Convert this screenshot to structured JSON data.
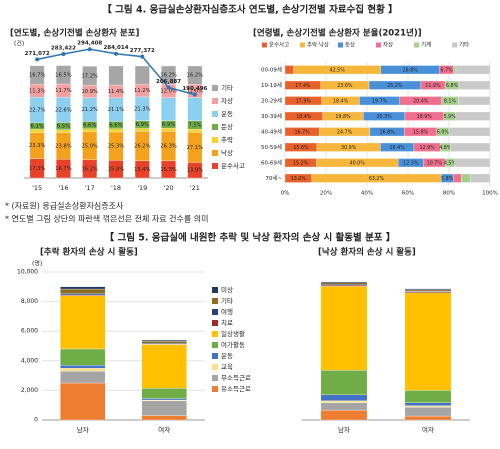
{
  "figure4": {
    "title": "【 그림 4. 응급실손상환자심층조사 연도별, 손상기전별 자료수집 현황 】",
    "notes": [
      "* (자료원) 응급실손상환자심층조사",
      "* 연도별 그림 상단의 파란색 꺾은선은 전체 자료 건수를 의미"
    ]
  },
  "figure5": {
    "title": "【 그림 5. 응급실에 내원한 추락 및 낙상 환자의 손상 시 활동별 분포 】"
  },
  "chart_data": [
    {
      "type": "bar",
      "orientation": "vertical",
      "stacked": true,
      "title": "[연도별, 손상기전별 손상환자 분포]",
      "y_label": "(건)",
      "categories": [
        "'15",
        "'16",
        "'17",
        "'18",
        "'19",
        "'20",
        "'21"
      ],
      "ylim": [
        0,
        100
      ],
      "y2lim": [
        0,
        320000
      ],
      "legend": "right",
      "series": [
        {
          "name": "운수사고",
          "color": "#e8432a",
          "values": [
            17.3,
            16.7,
            16.2,
            15.8,
            15.4,
            15.3,
            13.9
          ],
          "value_labels": [
            "17.3%",
            "16.7%",
            "16.2%",
            "15.8%",
            "15.4%",
            "15.3%",
            "13.9%"
          ]
        },
        {
          "name": "낙상",
          "color": "#f4a21e",
          "values": [
            23.3,
            23.8,
            25.0,
            25.3,
            26.2,
            26.3,
            27.1
          ],
          "value_labels": [
            "23.3%",
            "23.8%",
            "25.0%",
            "25.3%",
            "26.2%",
            "26.3%",
            "27.1%"
          ]
        },
        {
          "name": "추락",
          "color": "#f5d22c",
          "values": [
            2.8,
            2.6,
            2.7,
            2.8,
            2.6,
            2.8,
            2.6
          ]
        },
        {
          "name": "둔상",
          "color": "#70ad47",
          "values": [
            6.1,
            6.5,
            6.6,
            6.6,
            6.9,
            6.9,
            7.5
          ],
          "value_labels": [
            "6.1%",
            "6.5%",
            "6.6%",
            "6.6%",
            "6.9%",
            "6.9%",
            "7.5%"
          ]
        },
        {
          "name": "운동",
          "color": "#8ccfee",
          "values": [
            22.7,
            22.6,
            21.2,
            21.1,
            21.3,
            20.5,
            20.7
          ],
          "value_labels": [
            "22.7%",
            "22.6%",
            "21.2%",
            "21.1%",
            "21.3%",
            null,
            null
          ]
        },
        {
          "name": "자상",
          "color": "#f2a0a0",
          "values": [
            11.3,
            11.7,
            10.9,
            11.4,
            11.2,
            12.0,
            12.0
          ],
          "value_labels": [
            "11.3%",
            "11.7%",
            "10.9%",
            "11.4%",
            "11.2%",
            "12.0%",
            "12.0%"
          ]
        },
        {
          "name": "기타",
          "color": "#a6a6a6",
          "values": [
            16.7,
            16.5,
            17.2,
            17.0,
            16.4,
            16.2,
            16.2
          ],
          "value_labels": [
            "16.7%",
            "16.5%",
            "17.2%",
            null,
            null,
            "16.2%",
            "16.2%"
          ]
        },
        {
          "type": "line",
          "axis": "y2",
          "color": "#2e75b6",
          "values": [
            271072,
            283422,
            294408,
            284014,
            277372,
            206887,
            190496
          ],
          "value_labels": [
            "271,072",
            "283,422",
            "294,408",
            "284,014",
            "277,372",
            "206,887",
            "190,496"
          ]
        }
      ]
    },
    {
      "type": "bar",
      "orientation": "horizontal",
      "stacked": true,
      "title": "[연령별, 손상기전별 손상환자 분율(2021년)]",
      "categories": [
        "00-09세",
        "10-19세",
        "20-29세",
        "30-39세",
        "40-49세",
        "50-59세",
        "60-69세",
        "70세~"
      ],
      "xlim": [
        0,
        100
      ],
      "xticks": [
        {
          "value": 0,
          "label": "0%"
        },
        {
          "value": 20,
          "label": "20%"
        },
        {
          "value": 40,
          "label": "40%"
        },
        {
          "value": 60,
          "label": "60%"
        },
        {
          "value": 80,
          "label": "80%"
        },
        {
          "value": 100,
          "label": "100%"
        }
      ],
      "grid": true,
      "legend": "top",
      "series": [
        {
          "name": "운수사고",
          "color": "#e8602a",
          "values": [
            4.2,
            17.4,
            17.9,
            18.4,
            16.7,
            15.6,
            15.2,
            13.0
          ],
          "value_labels": [
            "4.2%",
            "17.4%",
            "17.9%",
            "18.4%",
            "16.7%",
            "15.6%",
            "15.2%",
            "13.0%"
          ]
        },
        {
          "name": "추락·낙상",
          "color": "#f6b73c",
          "values": [
            42.5,
            23.6,
            18.4,
            19.8,
            24.7,
            30.9,
            40.0,
            63.2
          ],
          "value_labels": [
            "42.5%",
            "23.6%",
            "18.4%",
            "19.8%",
            "24.7%",
            "30.9%",
            "40.0%",
            "63.2%"
          ]
        },
        {
          "name": "둔상",
          "color": "#4a90d9",
          "values": [
            28.8,
            25.2,
            19.7,
            20.3,
            16.8,
            16.4,
            12.3,
            5.8
          ],
          "value_labels": [
            "28.8%",
            "25.2%",
            "19.7%",
            "20.3%",
            "16.8%",
            "16.4%",
            "12.3%",
            "5.8%"
          ]
        },
        {
          "name": "자상",
          "color": "#f06e8e",
          "values": [
            6.7,
            11.9,
            20.4,
            18.9,
            15.8,
            12.9,
            10.7,
            4.0
          ],
          "value_labels": [
            "6.7%",
            "11.9%",
            "20.4%",
            "18.9%",
            "15.8%",
            "12.9%",
            "10.7%",
            "4.0%"
          ]
        },
        {
          "name": "기계",
          "color": "#a8d08d",
          "values": [
            1.2,
            6.8,
            8.1,
            5.9,
            6.0,
            4.8,
            4.5,
            4.3
          ],
          "value_labels": [
            "1.2%",
            "6.8%",
            "8.1%",
            "5.9%",
            "6.0%",
            "4.8%",
            "4.5%",
            "4.3%"
          ]
        },
        {
          "name": "기타",
          "color": "#c9c9c9",
          "values": [
            16.6,
            15.1,
            15.5,
            16.7,
            20.0,
            19.4,
            17.3,
            9.7
          ]
        }
      ]
    },
    {
      "type": "bar",
      "orientation": "vertical",
      "stacked": true,
      "title": "[추락 환자의 손상 시 활동]",
      "y_label": "(명)",
      "categories": [
        "남자",
        "여자"
      ],
      "ylim": [
        0,
        10000
      ],
      "yticks": [
        0,
        {
          "value": 2000,
          "label": "2,000"
        },
        {
          "value": 4000,
          "label": "4,000"
        },
        {
          "value": 6000,
          "label": "6,000"
        },
        {
          "value": 8000,
          "label": "8,000"
        },
        {
          "value": 10000,
          "label": "10,000"
        }
      ],
      "grid": true,
      "legend": "right",
      "series": [
        {
          "name": "유소득근로",
          "color": "#ed7d31",
          "values": [
            2500,
            300
          ]
        },
        {
          "name": "무소득근로",
          "color": "#a5a5a5",
          "values": [
            800,
            1000
          ]
        },
        {
          "name": "교육",
          "color": "#ffe08a",
          "values": [
            200,
            50
          ]
        },
        {
          "name": "운동",
          "color": "#4472c4",
          "values": [
            200,
            100
          ]
        },
        {
          "name": "여가활동",
          "color": "#70ad47",
          "values": [
            1100,
            700
          ]
        },
        {
          "name": "일상생활",
          "color": "#ffc000",
          "values": [
            3600,
            2950
          ]
        },
        {
          "name": "치료",
          "color": "#9e2a2b",
          "values": [
            50,
            30
          ]
        },
        {
          "name": "여행",
          "color": "#264478",
          "values": [
            100,
            50
          ]
        },
        {
          "name": "기타",
          "color": "#8c6d1f",
          "values": [
            300,
            150
          ]
        },
        {
          "name": "미상",
          "color": "#1f3864",
          "values": [
            150,
            70
          ]
        }
      ]
    },
    {
      "type": "bar",
      "orientation": "vertical",
      "stacked": true,
      "title": "[낙상 환자의 손상 시 활동]",
      "categories": [
        "남자",
        "여자"
      ],
      "ylim": [
        0,
        30000
      ],
      "series": [
        {
          "color": "#ed7d31",
          "values": [
            2000,
            800
          ]
        },
        {
          "color": "#a5a5a5",
          "values": [
            1500,
            1800
          ]
        },
        {
          "color": "#ffe08a",
          "values": [
            400,
            300
          ]
        },
        {
          "color": "#4472c4",
          "values": [
            1200,
            600
          ]
        },
        {
          "color": "#70ad47",
          "values": [
            5000,
            2500
          ]
        },
        {
          "color": "#ffc000",
          "values": [
            17000,
            19800
          ]
        },
        {
          "color": "#9e2a2b",
          "values": [
            200,
            200
          ]
        },
        {
          "color": "#264478",
          "values": [
            200,
            150
          ]
        },
        {
          "color": "#8c6d1f",
          "values": [
            300,
            250
          ]
        },
        {
          "color": "#1f3864",
          "values": [
            200,
            200
          ]
        }
      ]
    }
  ]
}
